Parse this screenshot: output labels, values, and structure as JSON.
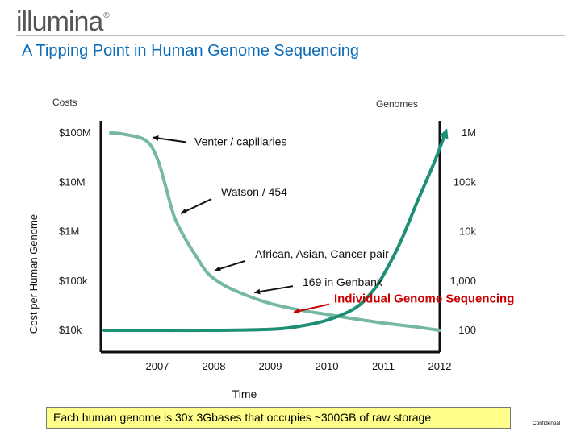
{
  "brand": {
    "logo_text": "illumina",
    "logo_mark": "®"
  },
  "header": {
    "title": "A Tipping Point in Human Genome Sequencing"
  },
  "footer": {
    "note": "Each human genome is 30x 3Gbases that occupies ~300GB of raw storage",
    "confidential": "Confidential"
  },
  "colors": {
    "costs_line": "#76b8a2",
    "genomes_line": "#1e8f75",
    "highlight": "#cc0000",
    "title": "#0c6cb8",
    "footer_bg": "#ffff8a"
  },
  "chart_data": {
    "type": "line",
    "xlabel": "Time",
    "x_ticks": [
      "2007",
      "2008",
      "2009",
      "2010",
      "2011",
      "2012"
    ],
    "left_axis": {
      "title": "Costs",
      "label": "Cost per Human Genome",
      "scale": "log",
      "ticks": [
        "$100M",
        "$10M",
        "$1M",
        "$100k",
        "$10k"
      ],
      "tick_values": [
        100000000,
        10000000,
        1000000,
        100000,
        10000
      ]
    },
    "right_axis": {
      "title": "Genomes",
      "scale": "log",
      "ticks": [
        "1M",
        "100k",
        "10k",
        "1,000",
        "100"
      ],
      "tick_values": [
        1000000,
        100000,
        10000,
        1000,
        100
      ]
    },
    "series": [
      {
        "name": "Costs",
        "axis": "left",
        "x": [
          2006.0,
          2006.4,
          2006.8,
          2007.0,
          2007.15,
          2007.3,
          2007.5,
          2007.7,
          2007.9,
          2008.2,
          2008.6,
          2009.0,
          2009.5,
          2010.0,
          2010.5,
          2011.0,
          2011.5,
          2012.0
        ],
        "y": [
          100000000,
          95000000,
          70000000,
          30000000,
          8000000,
          2000000,
          700000,
          300000,
          140000,
          80000,
          50000,
          35000,
          26000,
          21000,
          17000,
          14000,
          12000,
          10000
        ]
      },
      {
        "name": "Genomes",
        "axis": "right",
        "x": [
          2006.0,
          2007.0,
          2008.0,
          2009.0,
          2009.5,
          2010.0,
          2010.5,
          2010.8,
          2011.0,
          2011.3,
          2011.6,
          2011.9,
          2012.1
        ],
        "y": [
          100,
          100,
          100,
          105,
          120,
          160,
          280,
          600,
          1300,
          6000,
          40000,
          250000,
          1000000
        ]
      }
    ],
    "annotations": [
      {
        "text": "Venter / capillaries",
        "x": 2006.8,
        "y": 70000000,
        "style": "normal"
      },
      {
        "text": "Watson / 454",
        "x": 2007.3,
        "y": 2000000,
        "style": "normal"
      },
      {
        "text": "African, Asian, Cancer pair",
        "x": 2007.9,
        "y": 140000,
        "style": "normal"
      },
      {
        "text": "169 in Genbank",
        "x": 2008.6,
        "y": 50000,
        "style": "normal"
      },
      {
        "text": "Individual Genome Sequencing",
        "x": 2009.3,
        "y": 20000,
        "style": "highlight"
      }
    ]
  }
}
